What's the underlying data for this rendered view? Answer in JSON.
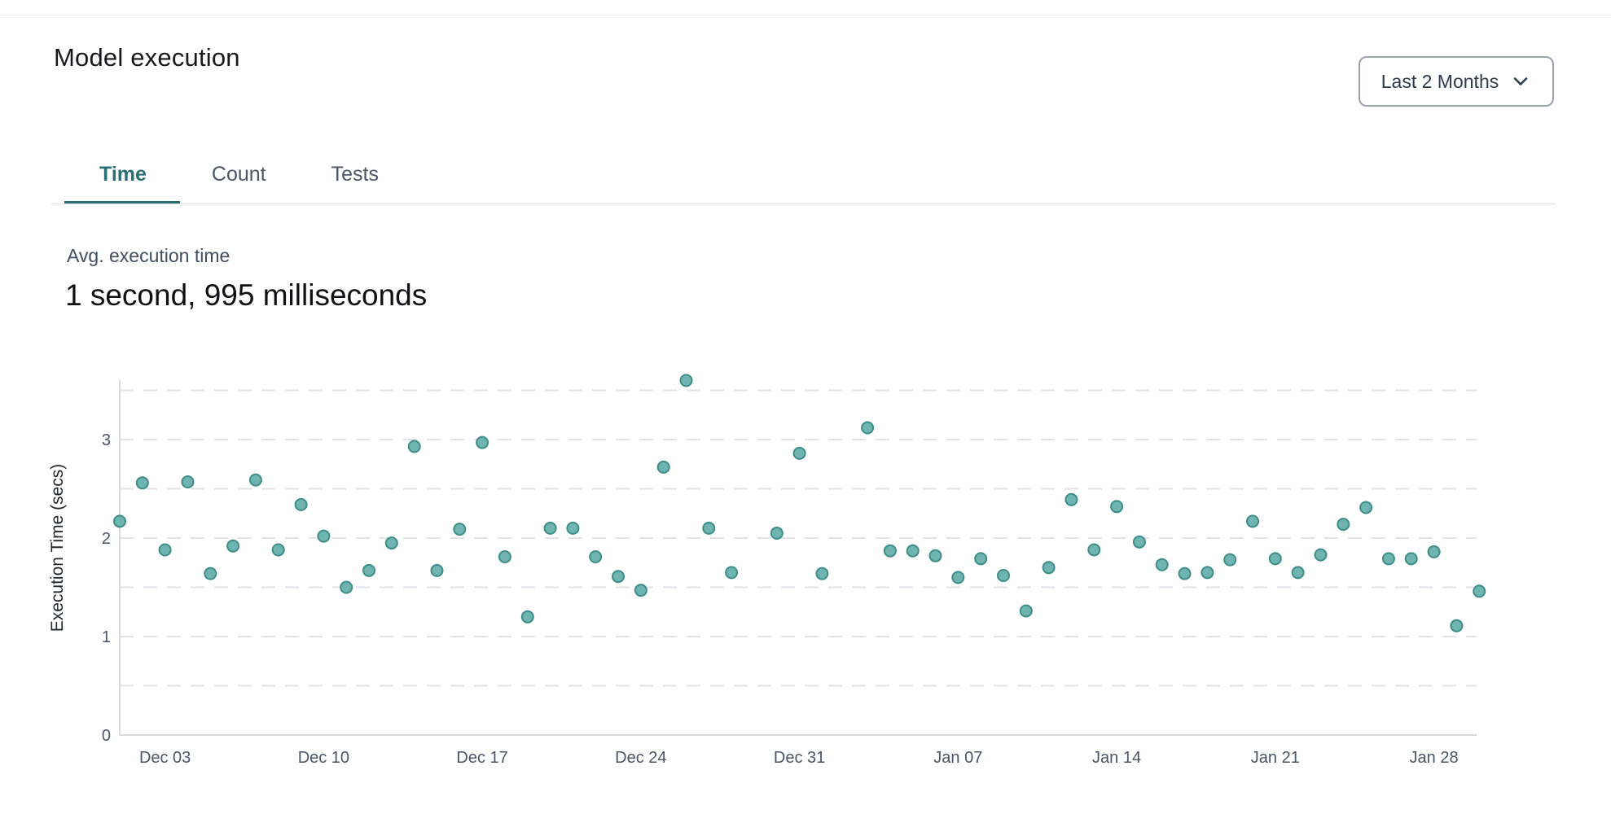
{
  "page": {
    "title": "Model execution"
  },
  "controls": {
    "range_selector": "Last 2 Months"
  },
  "tabs": [
    {
      "label": "Time",
      "active": true
    },
    {
      "label": "Count",
      "active": false
    },
    {
      "label": "Tests",
      "active": false
    }
  ],
  "stat": {
    "label": "Avg. execution time",
    "value": "1 second, 995 milliseconds"
  },
  "colors": {
    "accent": "#2A6F75",
    "dot_fill": "#6FB4B0",
    "dot_stroke": "#3D8D89",
    "grid": "#E2E2E8",
    "axis": "#D9DADE",
    "tick_text": "#4A5568",
    "axis_title_text": "#23272E"
  },
  "chart_data": {
    "type": "scatter",
    "title": "",
    "xlabel": "",
    "ylabel": "Execution Time (secs)",
    "ylim": [
      0,
      3.6
    ],
    "y_ticks": [
      0,
      1,
      2,
      3
    ],
    "grid_step": 0.5,
    "grid": "dashed-horizontal",
    "legend": "none",
    "x_ticks": [
      {
        "label": "Dec 03",
        "day": 2
      },
      {
        "label": "Dec 10",
        "day": 9
      },
      {
        "label": "Dec 17",
        "day": 16
      },
      {
        "label": "Dec 24",
        "day": 23
      },
      {
        "label": "Dec 31",
        "day": 30
      },
      {
        "label": "Jan 07",
        "day": 37
      },
      {
        "label": "Jan 14",
        "day": 44
      },
      {
        "label": "Jan 21",
        "day": 51
      },
      {
        "label": "Jan 28",
        "day": 58
      }
    ],
    "points": [
      {
        "date": "Dec 01",
        "day": 0,
        "value": 2.17
      },
      {
        "date": "Dec 02",
        "day": 1,
        "value": 2.56
      },
      {
        "date": "Dec 03",
        "day": 2,
        "value": 1.88
      },
      {
        "date": "Dec 04",
        "day": 3,
        "value": 2.57
      },
      {
        "date": "Dec 05",
        "day": 4,
        "value": 1.64
      },
      {
        "date": "Dec 06",
        "day": 5,
        "value": 1.92
      },
      {
        "date": "Dec 07",
        "day": 6,
        "value": 2.59
      },
      {
        "date": "Dec 08",
        "day": 7,
        "value": 1.88
      },
      {
        "date": "Dec 09",
        "day": 8,
        "value": 2.34
      },
      {
        "date": "Dec 10",
        "day": 9,
        "value": 2.02
      },
      {
        "date": "Dec 11",
        "day": 10,
        "value": 1.5
      },
      {
        "date": "Dec 12",
        "day": 11,
        "value": 1.67
      },
      {
        "date": "Dec 13",
        "day": 12,
        "value": 1.95
      },
      {
        "date": "Dec 14",
        "day": 13,
        "value": 2.93
      },
      {
        "date": "Dec 15",
        "day": 14,
        "value": 1.67
      },
      {
        "date": "Dec 16",
        "day": 15,
        "value": 2.09
      },
      {
        "date": "Dec 17",
        "day": 16,
        "value": 2.97
      },
      {
        "date": "Dec 18",
        "day": 17,
        "value": 1.81
      },
      {
        "date": "Dec 19",
        "day": 18,
        "value": 1.2
      },
      {
        "date": "Dec 20",
        "day": 19,
        "value": 2.1
      },
      {
        "date": "Dec 21",
        "day": 20,
        "value": 2.1
      },
      {
        "date": "Dec 22",
        "day": 21,
        "value": 1.81
      },
      {
        "date": "Dec 23",
        "day": 22,
        "value": 1.61
      },
      {
        "date": "Dec 24",
        "day": 23,
        "value": 1.47
      },
      {
        "date": "Dec 25",
        "day": 24,
        "value": 2.72
      },
      {
        "date": "Dec 26",
        "day": 25,
        "value": 3.6
      },
      {
        "date": "Dec 27",
        "day": 26,
        "value": 2.1
      },
      {
        "date": "Dec 28",
        "day": 27,
        "value": 1.65
      },
      {
        "date": "Dec 30",
        "day": 29,
        "value": 2.05
      },
      {
        "date": "Dec 31",
        "day": 30,
        "value": 2.86
      },
      {
        "date": "Jan 01",
        "day": 31,
        "value": 1.64
      },
      {
        "date": "Jan 03",
        "day": 33,
        "value": 3.12
      },
      {
        "date": "Jan 04",
        "day": 34,
        "value": 1.87
      },
      {
        "date": "Jan 05",
        "day": 35,
        "value": 1.87
      },
      {
        "date": "Jan 06",
        "day": 36,
        "value": 1.82
      },
      {
        "date": "Jan 07",
        "day": 37,
        "value": 1.6
      },
      {
        "date": "Jan 08",
        "day": 38,
        "value": 1.79
      },
      {
        "date": "Jan 09",
        "day": 39,
        "value": 1.62
      },
      {
        "date": "Jan 10",
        "day": 40,
        "value": 1.26
      },
      {
        "date": "Jan 11",
        "day": 41,
        "value": 1.7
      },
      {
        "date": "Jan 12",
        "day": 42,
        "value": 2.39
      },
      {
        "date": "Jan 13",
        "day": 43,
        "value": 1.88
      },
      {
        "date": "Jan 14",
        "day": 44,
        "value": 2.32
      },
      {
        "date": "Jan 15",
        "day": 45,
        "value": 1.96
      },
      {
        "date": "Jan 16",
        "day": 46,
        "value": 1.73
      },
      {
        "date": "Jan 17",
        "day": 47,
        "value": 1.64
      },
      {
        "date": "Jan 18",
        "day": 48,
        "value": 1.65
      },
      {
        "date": "Jan 19",
        "day": 49,
        "value": 1.78
      },
      {
        "date": "Jan 20",
        "day": 50,
        "value": 2.17
      },
      {
        "date": "Jan 21",
        "day": 51,
        "value": 1.79
      },
      {
        "date": "Jan 22",
        "day": 52,
        "value": 1.65
      },
      {
        "date": "Jan 23",
        "day": 53,
        "value": 1.83
      },
      {
        "date": "Jan 24",
        "day": 54,
        "value": 2.14
      },
      {
        "date": "Jan 25",
        "day": 55,
        "value": 2.31
      },
      {
        "date": "Jan 26",
        "day": 56,
        "value": 1.79
      },
      {
        "date": "Jan 27",
        "day": 57,
        "value": 1.79
      },
      {
        "date": "Jan 28",
        "day": 58,
        "value": 1.86
      },
      {
        "date": "Jan 29",
        "day": 59,
        "value": 1.11
      },
      {
        "date": "Jan 30",
        "day": 60,
        "value": 1.46
      }
    ]
  }
}
